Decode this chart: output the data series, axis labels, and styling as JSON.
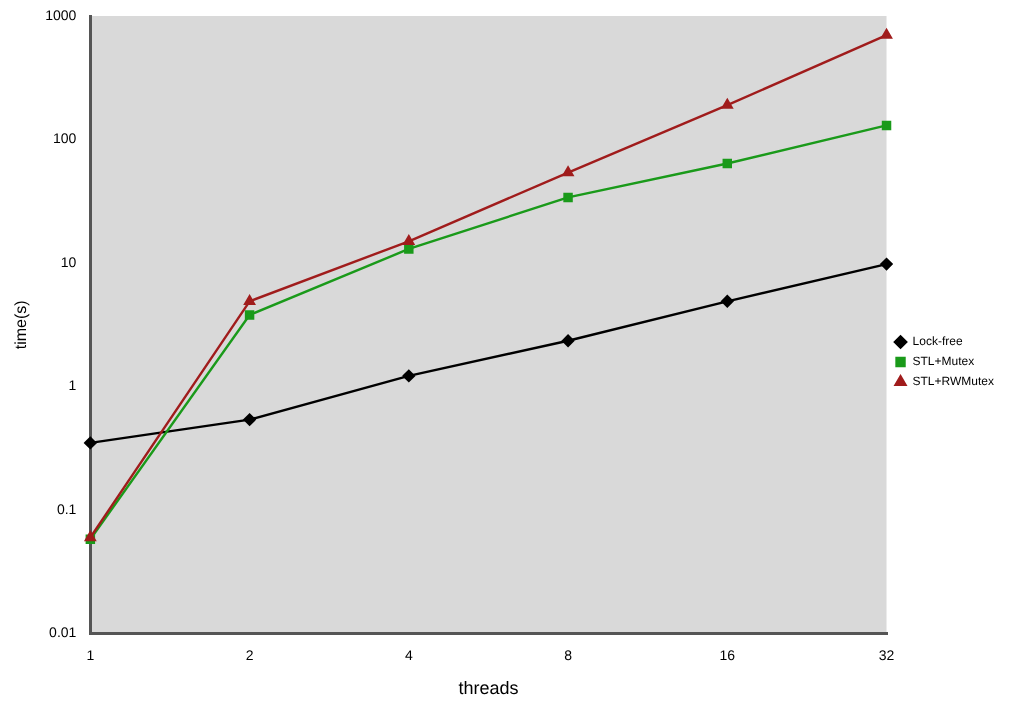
{
  "chart_data": {
    "type": "line",
    "xlabel": "threads",
    "ylabel": "time(s)",
    "categories": [
      "1",
      "2",
      "4",
      "8",
      "16",
      "32"
    ],
    "series": [
      {
        "name": "Lock-free",
        "color": "#000000",
        "marker": "diamond",
        "values": [
          0.35,
          0.54,
          1.22,
          2.35,
          4.9,
          9.8
        ]
      },
      {
        "name": "STL+Mutex",
        "color": "#1a9a1a",
        "marker": "square",
        "values": [
          0.058,
          3.8,
          13,
          34,
          64,
          130
        ]
      },
      {
        "name": "STL+RWMutex",
        "color": "#a01c1c",
        "marker": "triangle",
        "values": [
          0.06,
          4.9,
          15,
          54,
          190,
          700
        ]
      }
    ],
    "log": "y",
    "ylim": [
      0.01,
      1000
    ],
    "yticks": [
      0.01,
      0.1,
      1,
      10,
      100,
      1000
    ],
    "grid": false,
    "legend": "right"
  }
}
